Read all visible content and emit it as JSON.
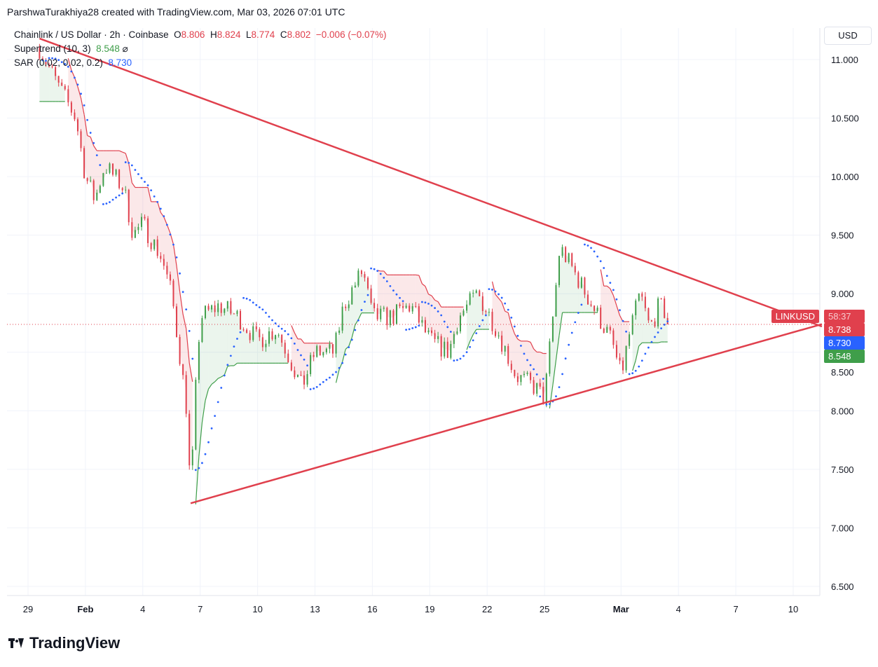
{
  "credit": "ParshwaTurakhiya28 created with TradingView.com, Mar 03, 2026 07:01 UTC",
  "legend": {
    "symbol": "Chainlink / US Dollar · 2h · Coinbase",
    "o_label": "O",
    "o": "8.806",
    "h_label": "H",
    "h": "8.824",
    "l_label": "L",
    "l": "8.774",
    "c_label": "C",
    "c": "8.802",
    "change": "−0.006 (−0.07%)",
    "supertrend_label": "Supertrend (10, 3)",
    "supertrend_value": "8.548",
    "supertrend_icon": "⌀",
    "sar_label": "SAR (0.02, 0.02, 0.2)",
    "sar_value": "8.730"
  },
  "currency": "USD",
  "tags": {
    "symbol": "LINKUSD",
    "countdown": "58:37",
    "price": "8.738",
    "sar": "8.730",
    "supertrend": "8.548"
  },
  "colors": {
    "up": "#3f9e4a",
    "down": "#e0404d",
    "sar": "#2962ff",
    "trendline": "#e0404d"
  },
  "brand": "TradingView",
  "chart_data": {
    "type": "candlestick",
    "title": "Chainlink / US Dollar · 2h · Coinbase",
    "ylim": [
      6.3,
      11.4
    ],
    "y_ticks": [
      "6.500",
      "7.000",
      "7.500",
      "8.000",
      "8.500",
      "9.000",
      "9.500",
      "10.000",
      "10.500",
      "11.000"
    ],
    "x_ticks": [
      {
        "label": "29",
        "day": 0
      },
      {
        "label": "Feb",
        "day": 3
      },
      {
        "label": "4",
        "day": 6
      },
      {
        "label": "7",
        "day": 9
      },
      {
        "label": "10",
        "day": 12
      },
      {
        "label": "13",
        "day": 15
      },
      {
        "label": "16",
        "day": 18
      },
      {
        "label": "19",
        "day": 21
      },
      {
        "label": "22",
        "day": 24
      },
      {
        "label": "25",
        "day": 27
      },
      {
        "label": "Mar",
        "day": 31
      },
      {
        "label": "4",
        "day": 34
      },
      {
        "label": "7",
        "day": 37
      },
      {
        "label": "10",
        "day": 40
      }
    ],
    "price_path": [
      [
        0.6,
        11.1
      ],
      [
        1.5,
        10.8
      ],
      [
        2.5,
        10.5
      ],
      [
        3,
        10.0
      ],
      [
        3.5,
        9.8
      ],
      [
        4,
        10.1
      ],
      [
        5,
        9.9
      ],
      [
        5.5,
        9.5
      ],
      [
        6,
        9.6
      ],
      [
        7,
        9.3
      ],
      [
        7.5,
        9.0
      ],
      [
        8,
        8.4
      ],
      [
        8.3,
        8.0
      ],
      [
        8.5,
        7.25
      ],
      [
        8.8,
        8.3
      ],
      [
        9,
        8.8
      ],
      [
        10,
        8.9
      ],
      [
        11,
        8.8
      ],
      [
        12,
        8.6
      ],
      [
        13,
        8.7
      ],
      [
        13.8,
        8.4
      ],
      [
        14.3,
        8.2
      ],
      [
        15,
        8.5
      ],
      [
        16,
        8.5
      ],
      [
        16.5,
        8.9
      ],
      [
        17.5,
        9.2
      ],
      [
        18,
        8.8
      ],
      [
        19,
        8.8
      ],
      [
        20,
        8.9
      ],
      [
        21,
        8.6
      ],
      [
        22,
        8.5
      ],
      [
        22.5,
        8.8
      ],
      [
        23.5,
        9.0
      ],
      [
        24.5,
        8.7
      ],
      [
        25.5,
        8.3
      ],
      [
        26.5,
        8.2
      ],
      [
        27,
        8.1
      ],
      [
        27.5,
        8.9
      ],
      [
        27.8,
        9.4
      ],
      [
        28.5,
        9.2
      ],
      [
        29.5,
        8.9
      ],
      [
        30.5,
        8.6
      ],
      [
        31,
        8.3
      ],
      [
        31.5,
        8.7
      ],
      [
        32,
        9.0
      ],
      [
        32.5,
        8.7
      ],
      [
        33,
        8.9
      ],
      [
        33.5,
        8.8
      ]
    ],
    "last_price": 8.738,
    "trendlines": [
      {
        "name": "upper",
        "from": [
          0.6,
          11.18
        ],
        "to": [
          41.5,
          8.72
        ]
      },
      {
        "name": "lower",
        "from": [
          8.5,
          7.21
        ],
        "to": [
          41.5,
          8.74
        ]
      }
    ],
    "indicators": [
      {
        "name": "Supertrend",
        "params": [
          10,
          3
        ],
        "last": 8.548
      },
      {
        "name": "SAR",
        "params": [
          0.02,
          0.02,
          0.2
        ],
        "last": 8.73
      }
    ]
  }
}
